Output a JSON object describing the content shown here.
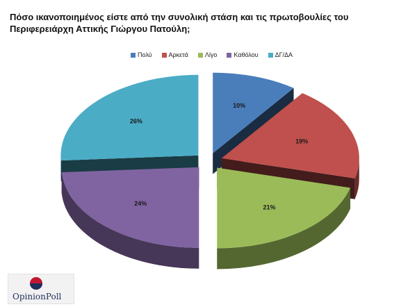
{
  "chart_data": {
    "type": "pie",
    "title": "Πόσο ικανοποιημένος είστε από την συνολική στάση και τις πρωτοβουλίες του Περιφερειάρχη Αττικής Γιώργου Πατούλη;",
    "legend_position": "top",
    "slices": [
      {
        "label": "Πολύ",
        "value": 10,
        "value_label": "10%",
        "color": "#4a7ebb"
      },
      {
        "label": "Αρκετά",
        "value": 19,
        "value_label": "19%",
        "color": "#c0504d"
      },
      {
        "label": "Λίγο",
        "value": 21,
        "value_label": "21%",
        "color": "#9bbb59"
      },
      {
        "label": "Καθόλου",
        "value": 24,
        "value_label": "24%",
        "color": "#8064a2"
      },
      {
        "label": "ΔΓ/ΔΑ",
        "value": 26,
        "value_label": "26%",
        "color": "#4bacc6"
      }
    ]
  },
  "logo": {
    "text": "OpinionPoll",
    "colors": {
      "red": "#c0172f",
      "navy": "#1f2d5c"
    }
  }
}
